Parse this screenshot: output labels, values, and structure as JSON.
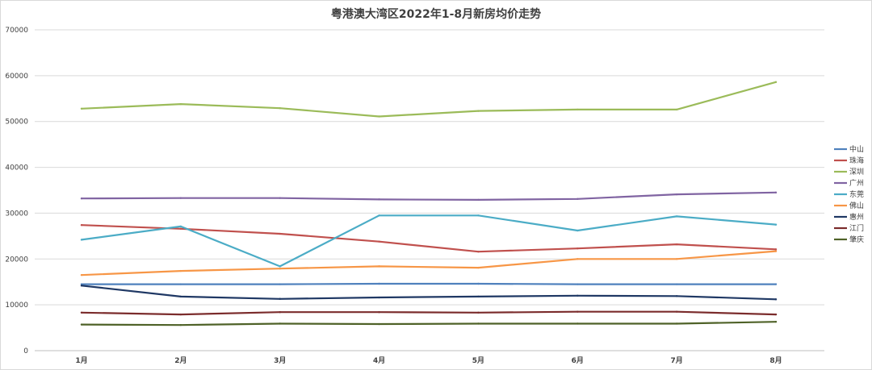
{
  "chart_data": {
    "type": "line",
    "title": "粤港澳大湾区2022年1-8月新房均价走势",
    "categories": [
      "1月",
      "2月",
      "3月",
      "4月",
      "5月",
      "6月",
      "7月",
      "8月"
    ],
    "ylim": [
      0,
      70000
    ],
    "yticks": [
      0,
      10000,
      20000,
      30000,
      40000,
      50000,
      60000,
      70000
    ],
    "grid": true,
    "legend_position": "right",
    "series": [
      {
        "name": "中山",
        "color": "#4f81bd",
        "values": [
          14500,
          14500,
          14500,
          14600,
          14600,
          14500,
          14500,
          14500
        ]
      },
      {
        "name": "珠海",
        "color": "#c0504d",
        "values": [
          27400,
          26600,
          25500,
          23800,
          21600,
          22300,
          23200,
          22100
        ]
      },
      {
        "name": "深圳",
        "color": "#9bbb59",
        "values": [
          52800,
          53800,
          52900,
          51100,
          52300,
          52600,
          52600,
          58600
        ]
      },
      {
        "name": "广州",
        "color": "#8064a2",
        "values": [
          33200,
          33300,
          33300,
          33000,
          32900,
          33100,
          34100,
          34500
        ]
      },
      {
        "name": "东莞",
        "color": "#4bacc6",
        "values": [
          24200,
          27100,
          18400,
          29500,
          29500,
          26200,
          29300,
          27500
        ]
      },
      {
        "name": "佛山",
        "color": "#f79646",
        "values": [
          16500,
          17400,
          17900,
          18400,
          18100,
          20000,
          20000,
          21700
        ]
      },
      {
        "name": "惠州",
        "color": "#1f3864",
        "values": [
          14200,
          11800,
          11300,
          11600,
          11800,
          12000,
          11900,
          11200
        ]
      },
      {
        "name": "江门",
        "color": "#7b2c2c",
        "values": [
          8300,
          7900,
          8400,
          8400,
          8300,
          8500,
          8500,
          7900
        ]
      },
      {
        "name": "肇庆",
        "color": "#4f6228",
        "values": [
          5700,
          5600,
          5900,
          5800,
          5900,
          5900,
          5900,
          6300
        ]
      }
    ]
  }
}
